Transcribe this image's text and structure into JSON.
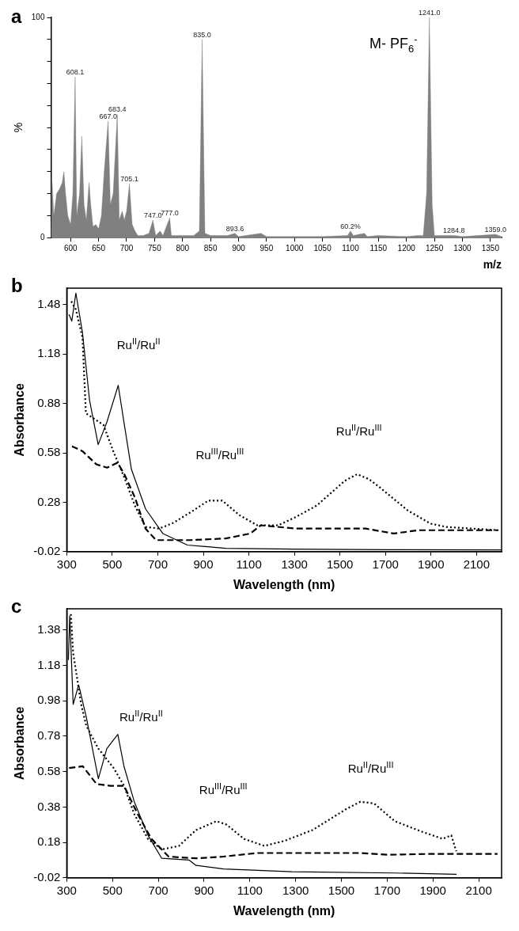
{
  "chart_data": [
    {
      "type": "area",
      "title": "a",
      "xlabel": "m/z",
      "ylabel": "%",
      "xlim": [
        565,
        1370
      ],
      "xticks": [
        600,
        650,
        700,
        750,
        800,
        850,
        900,
        950,
        1000,
        1050,
        1100,
        1150,
        1200,
        1250,
        1300,
        1350
      ],
      "ylim": [
        0,
        100
      ],
      "yticks": [
        0,
        {
          "value": 10,
          "label": null
        },
        {
          "value": 20,
          "label": null
        },
        {
          "value": 30,
          "label": null
        },
        {
          "value": 40,
          "label": null
        },
        {
          "value": 50,
          "label": null
        },
        {
          "value": 60,
          "label": null
        },
        {
          "value": 70,
          "label": null
        },
        {
          "value": 80,
          "label": null
        },
        {
          "value": 90,
          "label": null
        },
        100
      ],
      "series": [
        {
          "color": "#808080",
          "x": [
            565,
            567,
            570,
            575,
            580,
            585,
            588,
            591,
            595,
            600,
            604,
            608.1,
            611,
            616,
            620,
            624,
            628,
            633,
            636,
            640,
            645,
            650,
            655,
            660,
            667,
            671,
            676,
            683.4,
            687,
            692,
            696,
            700,
            705.1,
            710,
            715,
            720,
            730,
            740,
            747,
            752,
            760,
            765,
            777,
            780,
            800,
            820,
            830,
            835,
            840,
            850,
            880,
            893.6,
            900,
            940,
            950,
            1000,
            1050,
            1095,
            1100,
            1105,
            1125,
            1130,
            1150,
            1200,
            1220,
            1230,
            1236,
            1241,
            1246,
            1250,
            1284.8,
            1300,
            1359,
            1370
          ],
          "values": [
            0,
            25,
            10,
            20,
            22,
            25,
            30,
            20,
            10,
            6,
            20,
            73,
            10,
            20,
            46,
            15,
            8,
            25,
            15,
            5,
            6,
            4,
            10,
            30,
            53,
            15,
            20,
            56,
            8,
            12,
            8,
            12,
            24.5,
            6,
            3,
            1,
            1,
            2,
            8,
            1,
            3,
            1,
            9,
            1,
            1,
            1,
            3,
            90,
            2,
            1,
            1,
            2,
            0.5,
            2,
            0.5,
            0.5,
            0.5,
            1,
            3,
            1,
            2,
            0.5,
            1,
            0.5,
            1,
            1,
            20,
            100,
            15,
            1,
            1,
            0.5,
            1.5,
            0.5
          ]
        }
      ],
      "annotations": [
        {
          "text": "608.1",
          "x": 608.1,
          "y": 73
        },
        {
          "text": "667.0",
          "x": 667,
          "y": 53
        },
        {
          "text": "683.4",
          "x": 683.4,
          "y": 56
        },
        {
          "text": "705.1",
          "x": 705.1,
          "y": 24.5
        },
        {
          "text": "747.0",
          "x": 747,
          "y": 8
        },
        {
          "text": "777.0",
          "x": 777,
          "y": 9
        },
        {
          "text": "835.0",
          "x": 835,
          "y": 90
        },
        {
          "text": "893.6",
          "x": 893.6,
          "y": 2
        },
        {
          "text": "60.2%",
          "x": 1100,
          "y": 3
        },
        {
          "text": "1241.0",
          "x": 1241,
          "y": 100
        },
        {
          "text": "1284.8",
          "x": 1284.8,
          "y": 1
        },
        {
          "text": "1359.0",
          "x": 1359,
          "y": 1.5
        },
        "M- PF$_{6}$$^{-}$"
      ]
    },
    {
      "type": "line",
      "title": "b",
      "xlabel": "Wavelength (nm)",
      "ylabel": "Absorbance",
      "xlim": [
        300,
        2210
      ],
      "xticks": [
        300,
        500,
        700,
        900,
        1100,
        1300,
        1500,
        1700,
        1900,
        2100
      ],
      "ylim": [
        -0.02,
        1.58
      ],
      "yticks": [
        -0.02,
        0.28,
        0.58,
        0.88,
        1.18,
        1.48
      ],
      "series": [
        {
          "color": "#000000",
          "line_style": "solid",
          "x": [
            310,
            322,
            340,
            369,
            400,
            438,
            477,
            526,
            553,
            584,
            646,
            722,
            830,
            999,
            1300,
            1700,
            2210
          ],
          "values": [
            1.42,
            1.38,
            1.55,
            1.31,
            0.9,
            0.63,
            0.77,
            0.99,
            0.75,
            0.48,
            0.24,
            0.09,
            0.02,
            0.0,
            -0.005,
            -0.008,
            -0.01
          ]
        },
        {
          "color": "#000000",
          "line_style": "dotted",
          "x": [
            320,
            340,
            369,
            384,
            461,
            507,
            553,
            599,
            646,
            707,
            768,
            845,
            922,
            983,
            1060,
            1137,
            1229,
            1306,
            1398,
            1521,
            1575,
            1628,
            1675,
            1798,
            1898,
            1967,
            2195
          ],
          "values": [
            1.5,
            1.45,
            1.28,
            0.82,
            0.75,
            0.58,
            0.43,
            0.26,
            0.13,
            0.12,
            0.155,
            0.22,
            0.29,
            0.29,
            0.2,
            0.14,
            0.14,
            0.19,
            0.26,
            0.41,
            0.45,
            0.42,
            0.37,
            0.23,
            0.15,
            0.13,
            0.11
          ]
        },
        {
          "color": "#000000",
          "line_style": "dashed",
          "x": [
            323,
            369,
            430,
            477,
            523,
            553,
            599,
            646,
            692,
            753,
            845,
            999,
            1106,
            1152,
            1306,
            1460,
            1613,
            1736,
            1844,
            2195
          ],
          "values": [
            0.62,
            0.59,
            0.51,
            0.49,
            0.52,
            0.45,
            0.31,
            0.12,
            0.05,
            0.05,
            0.05,
            0.06,
            0.09,
            0.14,
            0.12,
            0.12,
            0.12,
            0.09,
            0.11,
            0.11
          ]
        }
      ],
      "annotations": [
        "Ru$^{II}$/Ru$^{II}$",
        "Ru$^{III}$/Ru$^{III}$",
        "Ru$^{II}$/Ru$^{III}$"
      ]
    },
    {
      "type": "line",
      "title": "c",
      "xlabel": "Wavelength (nm)",
      "ylabel": "Absorbance",
      "xlim": [
        300,
        2200
      ],
      "xticks": [
        300,
        500,
        700,
        900,
        1100,
        1300,
        1500,
        1700,
        1900,
        2100
      ],
      "ylim": [
        -0.02,
        1.5
      ],
      "yticks": [
        -0.02,
        0.18,
        0.38,
        0.58,
        0.78,
        0.98,
        1.18,
        1.38
      ],
      "series": [
        {
          "color": "#000000",
          "line_style": "solid",
          "x": [
            307,
            313,
            328,
            352,
            385,
            438,
            475,
            523,
            550,
            595,
            655,
            715,
            835,
            865,
            985,
            1284,
            1733,
            2003
          ],
          "values": [
            1.21,
            1.46,
            0.96,
            1.07,
            0.89,
            0.54,
            0.71,
            0.79,
            0.61,
            0.41,
            0.22,
            0.09,
            0.08,
            0.05,
            0.03,
            0.014,
            0.007,
            0.0
          ]
        },
        {
          "color": "#000000",
          "line_style": "dotted",
          "x": [
            318,
            328,
            363,
            385,
            438,
            505,
            550,
            595,
            655,
            715,
            790,
            865,
            954,
            999,
            1074,
            1164,
            1254,
            1374,
            1523,
            1583,
            1643,
            1733,
            1853,
            1943,
            1980,
            2002
          ],
          "values": [
            1.47,
            1.25,
            0.96,
            0.84,
            0.71,
            0.6,
            0.5,
            0.34,
            0.2,
            0.14,
            0.16,
            0.25,
            0.3,
            0.28,
            0.2,
            0.16,
            0.19,
            0.25,
            0.37,
            0.41,
            0.4,
            0.3,
            0.24,
            0.2,
            0.22,
            0.13
          ]
        },
        {
          "color": "#000000",
          "line_style": "dashed",
          "x": [
            310,
            370,
            430,
            490,
            550,
            610,
            670,
            745,
            865,
            985,
            1134,
            1284,
            1434,
            1583,
            1703,
            1883,
            2182
          ],
          "values": [
            0.6,
            0.61,
            0.51,
            0.5,
            0.5,
            0.34,
            0.2,
            0.1,
            0.09,
            0.1,
            0.12,
            0.12,
            0.12,
            0.12,
            0.11,
            0.115,
            0.115
          ]
        }
      ],
      "annotations": [
        "Ru$^{II}$/Ru$^{II}$",
        "Ru$^{III}$/Ru$^{III}$",
        "Ru$^{II}$/Ru$^{III}$"
      ]
    }
  ]
}
